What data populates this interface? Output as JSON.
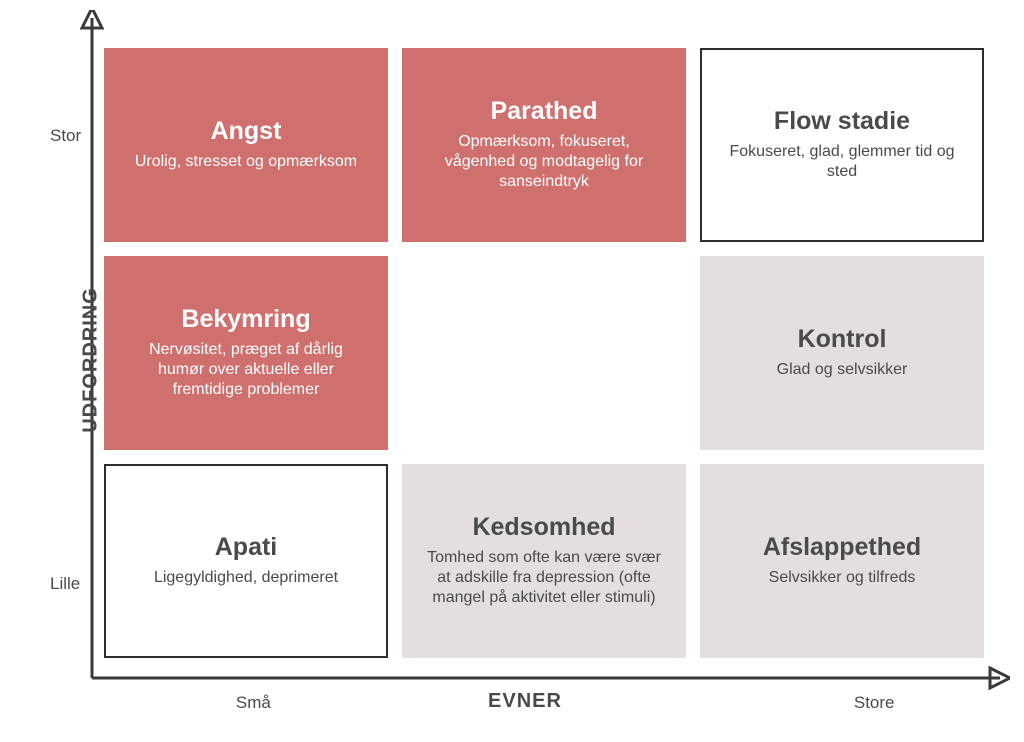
{
  "diagram": {
    "type": "infographic",
    "structure": "3x3-matrix",
    "background_color": "#ffffff",
    "axis_color": "#3a3a3a",
    "axis_stroke_width": 3,
    "y_axis": {
      "title": "UDFORDRING",
      "ticks": [
        "Lille",
        "Stor"
      ],
      "tick_positions_pct": [
        82,
        18
      ]
    },
    "x_axis": {
      "title": "EVNER",
      "ticks": [
        "Små",
        "Store"
      ],
      "tick_positions_pct": [
        22,
        86
      ]
    },
    "text_color_dark": "#4a4a4a",
    "palette": {
      "red_fill": "#cf706f",
      "red_border": "#cf706f",
      "red_text": "#ffffff",
      "white_fill": "#ffffff",
      "white_border": "#2e2e2e",
      "white_text": "#4a4a4a",
      "grey_fill": "#e4dde1",
      "grey_border": "#e4dde1",
      "grey_text": "#4a4a4a"
    },
    "title_fontsize": 25,
    "desc_fontsize": 16,
    "cells": [
      {
        "row": 0,
        "col": 0,
        "title": "Angst",
        "desc": "Urolig, stresset og opmærksom",
        "style": "red"
      },
      {
        "row": 0,
        "col": 1,
        "title": "Parathed",
        "desc": "Opmærksom, fokuseret, vågenhed og modtagelig for sanseindtryk",
        "style": "red"
      },
      {
        "row": 0,
        "col": 2,
        "title": "Flow stadie",
        "desc": "Fokuseret, glad, glemmer tid og sted",
        "style": "white"
      },
      {
        "row": 1,
        "col": 0,
        "title": "Bekymring",
        "desc": "Nervøsitet, præget af dårlig humør over aktuelle eller fremtidige problemer",
        "style": "red"
      },
      {
        "row": 1,
        "col": 1,
        "title": "",
        "desc": "",
        "style": "empty"
      },
      {
        "row": 1,
        "col": 2,
        "title": "Kontrol",
        "desc": "Glad og selvsikker",
        "style": "grey"
      },
      {
        "row": 2,
        "col": 0,
        "title": "Apati",
        "desc": "Ligegyldighed, deprimeret",
        "style": "white"
      },
      {
        "row": 2,
        "col": 1,
        "title": "Kedsomhed",
        "desc": "Tomhed som ofte kan være svær at adskille fra depression (ofte mangel på aktivitet eller stimuli)",
        "style": "grey"
      },
      {
        "row": 2,
        "col": 2,
        "title": "Afslappethed",
        "desc": "Selvsikker og tilfreds",
        "style": "grey"
      }
    ]
  }
}
